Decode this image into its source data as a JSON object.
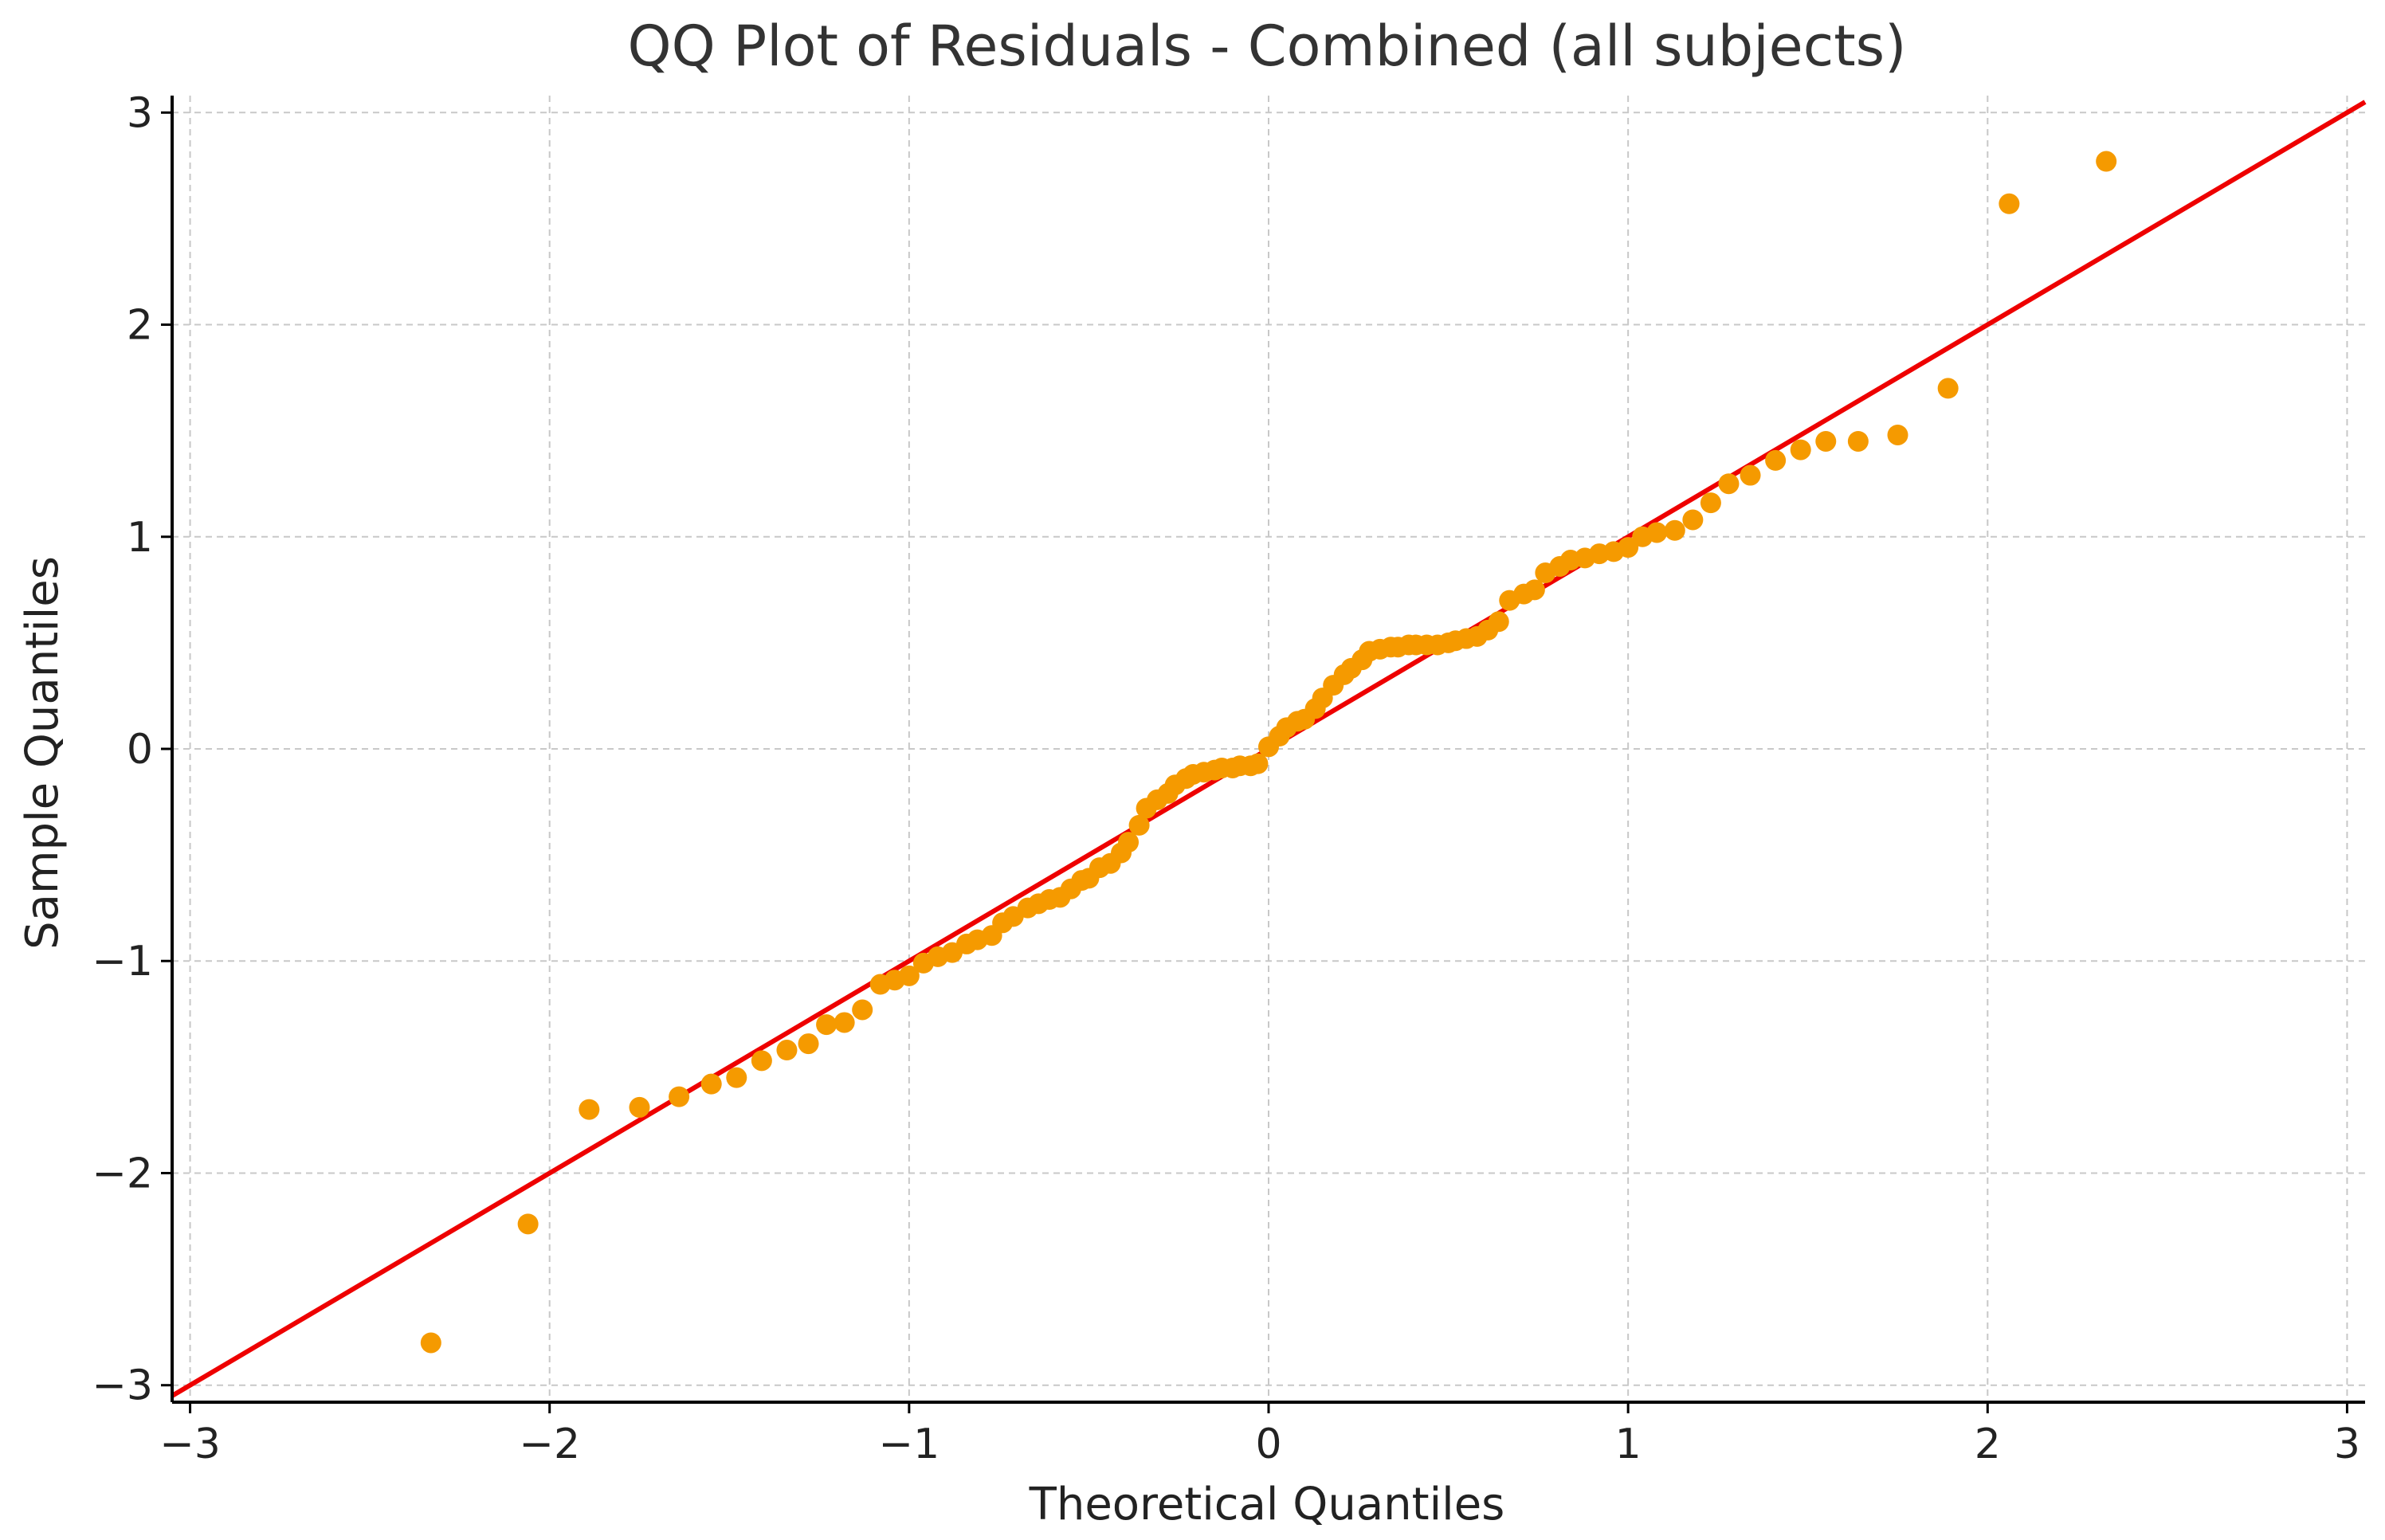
{
  "chart_data": {
    "type": "scatter",
    "title": "QQ Plot of Residuals - Combined (all subjects)",
    "xlabel": "Theoretical Quantiles",
    "ylabel": "Sample Quantiles",
    "xlim": [
      -3.05,
      3.05
    ],
    "ylim": [
      -3.08,
      3.08
    ],
    "xticks": [
      -3,
      -2,
      -1,
      0,
      1,
      2,
      3
    ],
    "yticks": [
      -3,
      -2,
      -1,
      0,
      1,
      2,
      3
    ],
    "xtick_labels": [
      "−3",
      "−2",
      "−1",
      "0",
      "1",
      "2",
      "3"
    ],
    "ytick_labels": [
      "−3",
      "−2",
      "−1",
      "0",
      "1",
      "2",
      "3"
    ],
    "grid": true,
    "legend": "none",
    "points_color": "#f59a00",
    "line_color": "#ee0000",
    "reference_line": {
      "from": [
        -3.05,
        -3.05
      ],
      "to": [
        3.05,
        3.05
      ]
    },
    "points": [
      [
        -2.33,
        -2.8
      ],
      [
        -2.06,
        -2.24
      ],
      [
        -1.89,
        -1.7
      ],
      [
        -1.75,
        -1.69
      ],
      [
        -1.64,
        -1.64
      ],
      [
        -1.55,
        -1.58
      ],
      [
        -1.48,
        -1.55
      ],
      [
        -1.41,
        -1.47
      ],
      [
        -1.34,
        -1.42
      ],
      [
        -1.28,
        -1.39
      ],
      [
        -1.23,
        -1.3
      ],
      [
        -1.18,
        -1.29
      ],
      [
        -1.13,
        -1.23
      ],
      [
        -1.08,
        -1.11
      ],
      [
        -1.04,
        -1.09
      ],
      [
        -1.0,
        -1.07
      ],
      [
        -0.96,
        -1.01
      ],
      [
        -0.92,
        -0.98
      ],
      [
        -0.88,
        -0.96
      ],
      [
        -0.84,
        -0.92
      ],
      [
        -0.81,
        -0.9
      ],
      [
        -0.77,
        -0.88
      ],
      [
        -0.74,
        -0.82
      ],
      [
        -0.71,
        -0.79
      ],
      [
        -0.67,
        -0.75
      ],
      [
        -0.64,
        -0.73
      ],
      [
        -0.61,
        -0.71
      ],
      [
        -0.58,
        -0.7
      ],
      [
        -0.55,
        -0.66
      ],
      [
        -0.52,
        -0.62
      ],
      [
        -0.5,
        -0.61
      ],
      [
        -0.47,
        -0.56
      ],
      [
        -0.44,
        -0.54
      ],
      [
        -0.41,
        -0.49
      ],
      [
        -0.39,
        -0.44
      ],
      [
        -0.36,
        -0.36
      ],
      [
        -0.34,
        -0.28
      ],
      [
        -0.31,
        -0.24
      ],
      [
        -0.28,
        -0.21
      ],
      [
        -0.26,
        -0.17
      ],
      [
        -0.23,
        -0.14
      ],
      [
        -0.21,
        -0.12
      ],
      [
        -0.18,
        -0.11
      ],
      [
        -0.15,
        -0.1
      ],
      [
        -0.13,
        -0.09
      ],
      [
        -0.1,
        -0.09
      ],
      [
        -0.08,
        -0.08
      ],
      [
        -0.05,
        -0.08
      ],
      [
        -0.03,
        -0.07
      ],
      [
        0.0,
        0.01
      ],
      [
        0.03,
        0.06
      ],
      [
        0.05,
        0.1
      ],
      [
        0.08,
        0.13
      ],
      [
        0.1,
        0.14
      ],
      [
        0.13,
        0.19
      ],
      [
        0.15,
        0.24
      ],
      [
        0.18,
        0.3
      ],
      [
        0.21,
        0.35
      ],
      [
        0.23,
        0.38
      ],
      [
        0.26,
        0.42
      ],
      [
        0.28,
        0.46
      ],
      [
        0.31,
        0.47
      ],
      [
        0.34,
        0.48
      ],
      [
        0.36,
        0.48
      ],
      [
        0.39,
        0.49
      ],
      [
        0.41,
        0.49
      ],
      [
        0.44,
        0.49
      ],
      [
        0.47,
        0.49
      ],
      [
        0.5,
        0.5
      ],
      [
        0.52,
        0.51
      ],
      [
        0.55,
        0.52
      ],
      [
        0.58,
        0.53
      ],
      [
        0.61,
        0.56
      ],
      [
        0.64,
        0.6
      ],
      [
        0.67,
        0.7
      ],
      [
        0.71,
        0.73
      ],
      [
        0.74,
        0.75
      ],
      [
        0.77,
        0.83
      ],
      [
        0.81,
        0.86
      ],
      [
        0.84,
        0.89
      ],
      [
        0.88,
        0.9
      ],
      [
        0.92,
        0.92
      ],
      [
        0.96,
        0.93
      ],
      [
        1.0,
        0.95
      ],
      [
        1.04,
        1.0
      ],
      [
        1.08,
        1.02
      ],
      [
        1.13,
        1.03
      ],
      [
        1.18,
        1.08
      ],
      [
        1.23,
        1.16
      ],
      [
        1.28,
        1.25
      ],
      [
        1.34,
        1.29
      ],
      [
        1.41,
        1.36
      ],
      [
        1.48,
        1.41
      ],
      [
        1.55,
        1.45
      ],
      [
        1.64,
        1.45
      ],
      [
        1.75,
        1.48
      ],
      [
        1.89,
        1.7
      ],
      [
        2.06,
        2.57
      ],
      [
        2.33,
        2.77
      ]
    ]
  }
}
